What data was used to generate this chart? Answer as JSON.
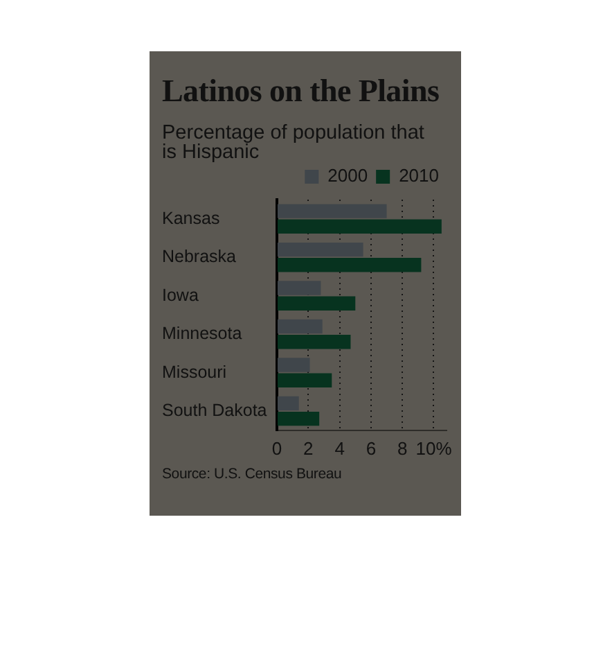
{
  "chart_data": {
    "type": "bar",
    "orientation": "horizontal",
    "title": "Latinos on the Plains",
    "subtitle": "Percentage of population that is Hispanic",
    "categories": [
      "Kansas",
      "Nebraska",
      "Iowa",
      "Minnesota",
      "Missouri",
      "South Dakota"
    ],
    "series": [
      {
        "name": "2000",
        "color": "#40464b",
        "values": [
          7.0,
          5.5,
          2.8,
          2.9,
          2.1,
          1.4
        ]
      },
      {
        "name": "2010",
        "color": "#07331f",
        "values": [
          10.5,
          9.2,
          5.0,
          4.7,
          3.5,
          2.7
        ]
      }
    ],
    "xlim": [
      0,
      10.8
    ],
    "xticks": [
      0,
      2,
      4,
      6,
      8,
      {
        "value": 10,
        "label": "10%"
      }
    ],
    "grid": "x",
    "legend": "top right",
    "annotations": [
      "Source: U.S. Census Bureau"
    ]
  }
}
